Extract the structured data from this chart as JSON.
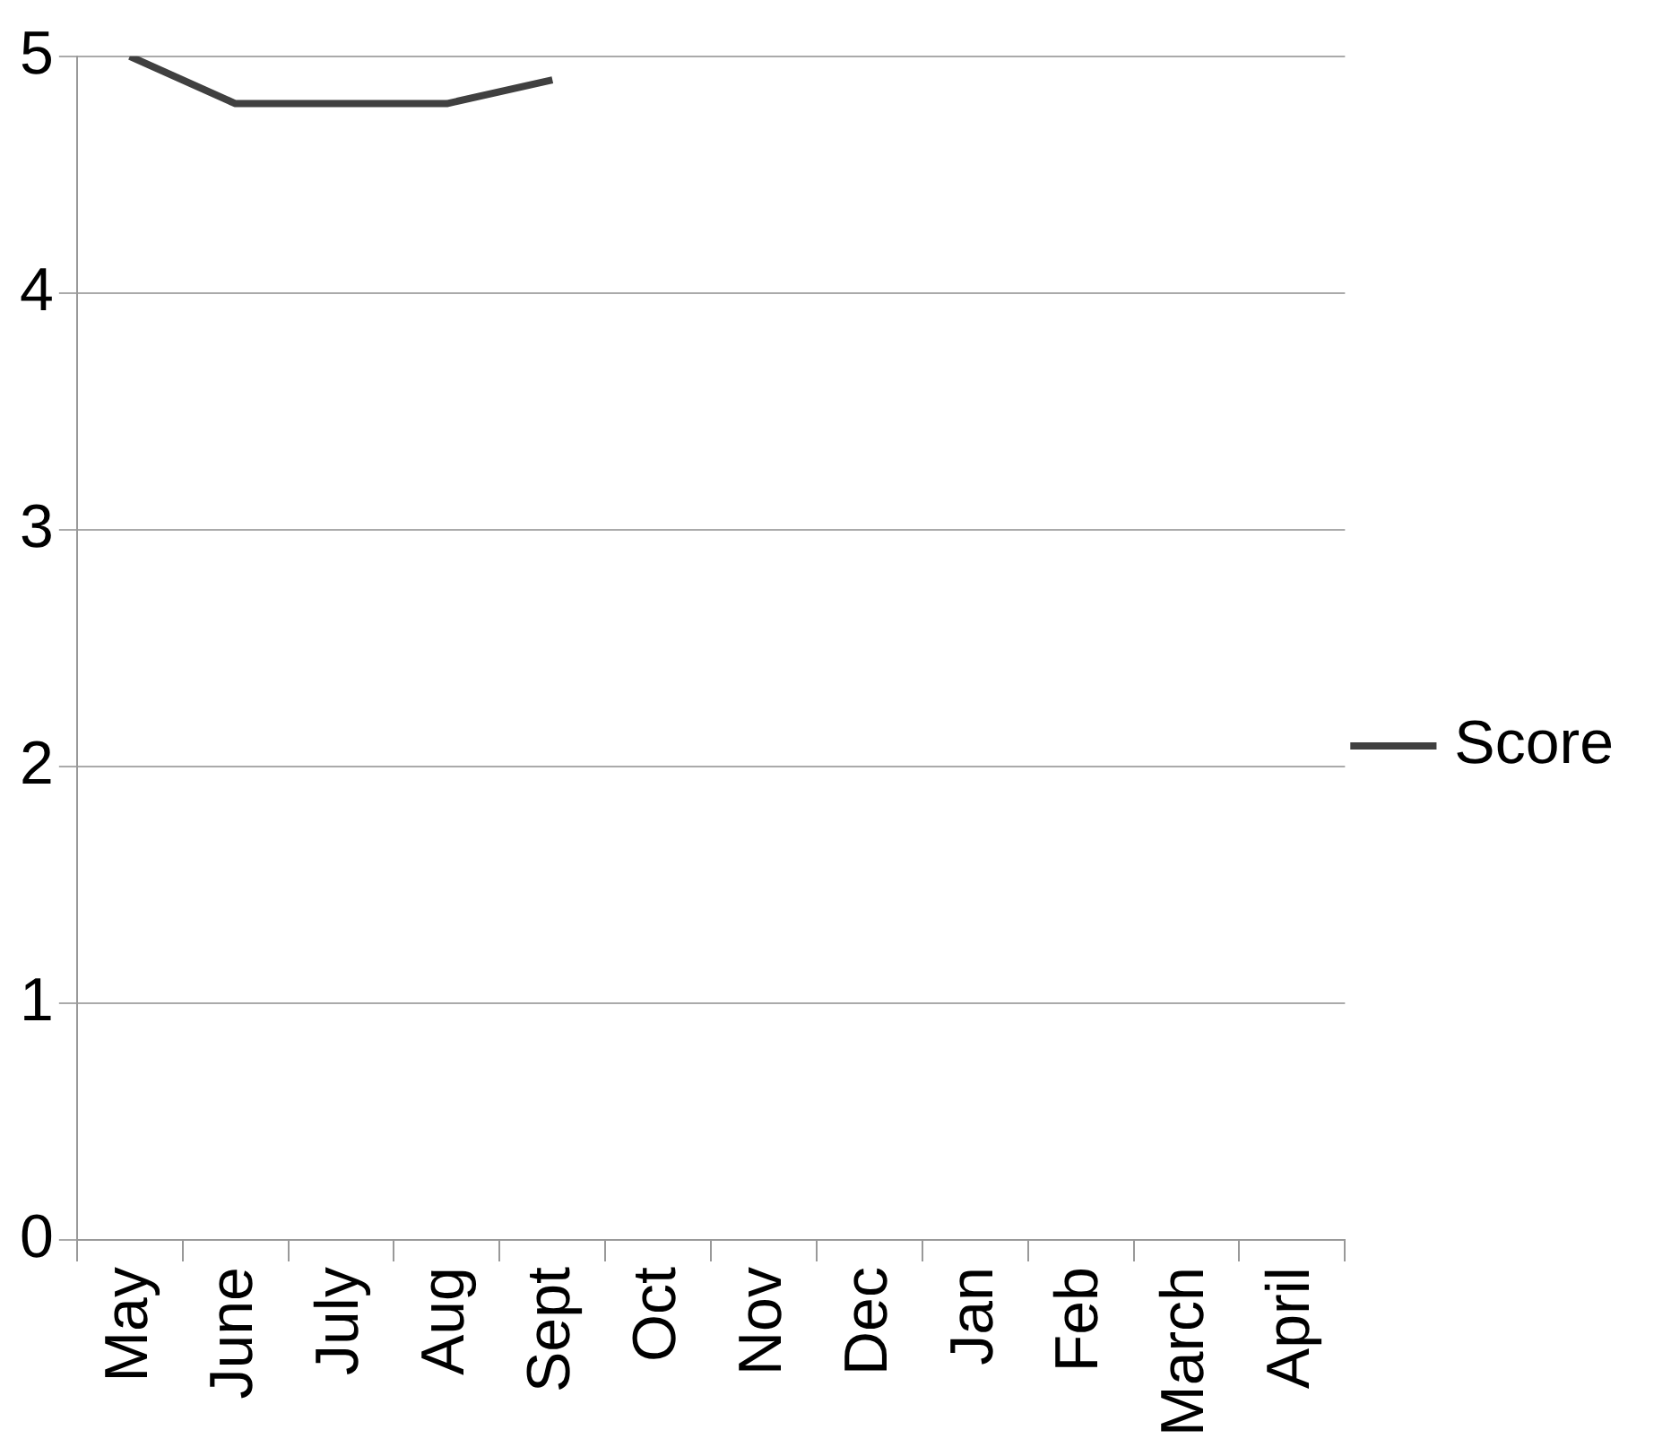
{
  "chart_data": {
    "type": "line",
    "categories": [
      "May",
      "June",
      "July",
      "Aug",
      "Sept",
      "Oct",
      "Nov",
      "Dec",
      "Jan",
      "Feb",
      "March",
      "April"
    ],
    "series": [
      {
        "name": "Score",
        "color": "#404040",
        "values": [
          5,
          4.8,
          4.8,
          4.8,
          4.9,
          null,
          null,
          null,
          null,
          null,
          null,
          null
        ]
      }
    ],
    "ylim": [
      0,
      5
    ],
    "yticks": [
      0,
      1,
      2,
      3,
      4,
      5
    ],
    "grid": "y",
    "legend": "right",
    "marker": "none",
    "line_style": "solid"
  }
}
